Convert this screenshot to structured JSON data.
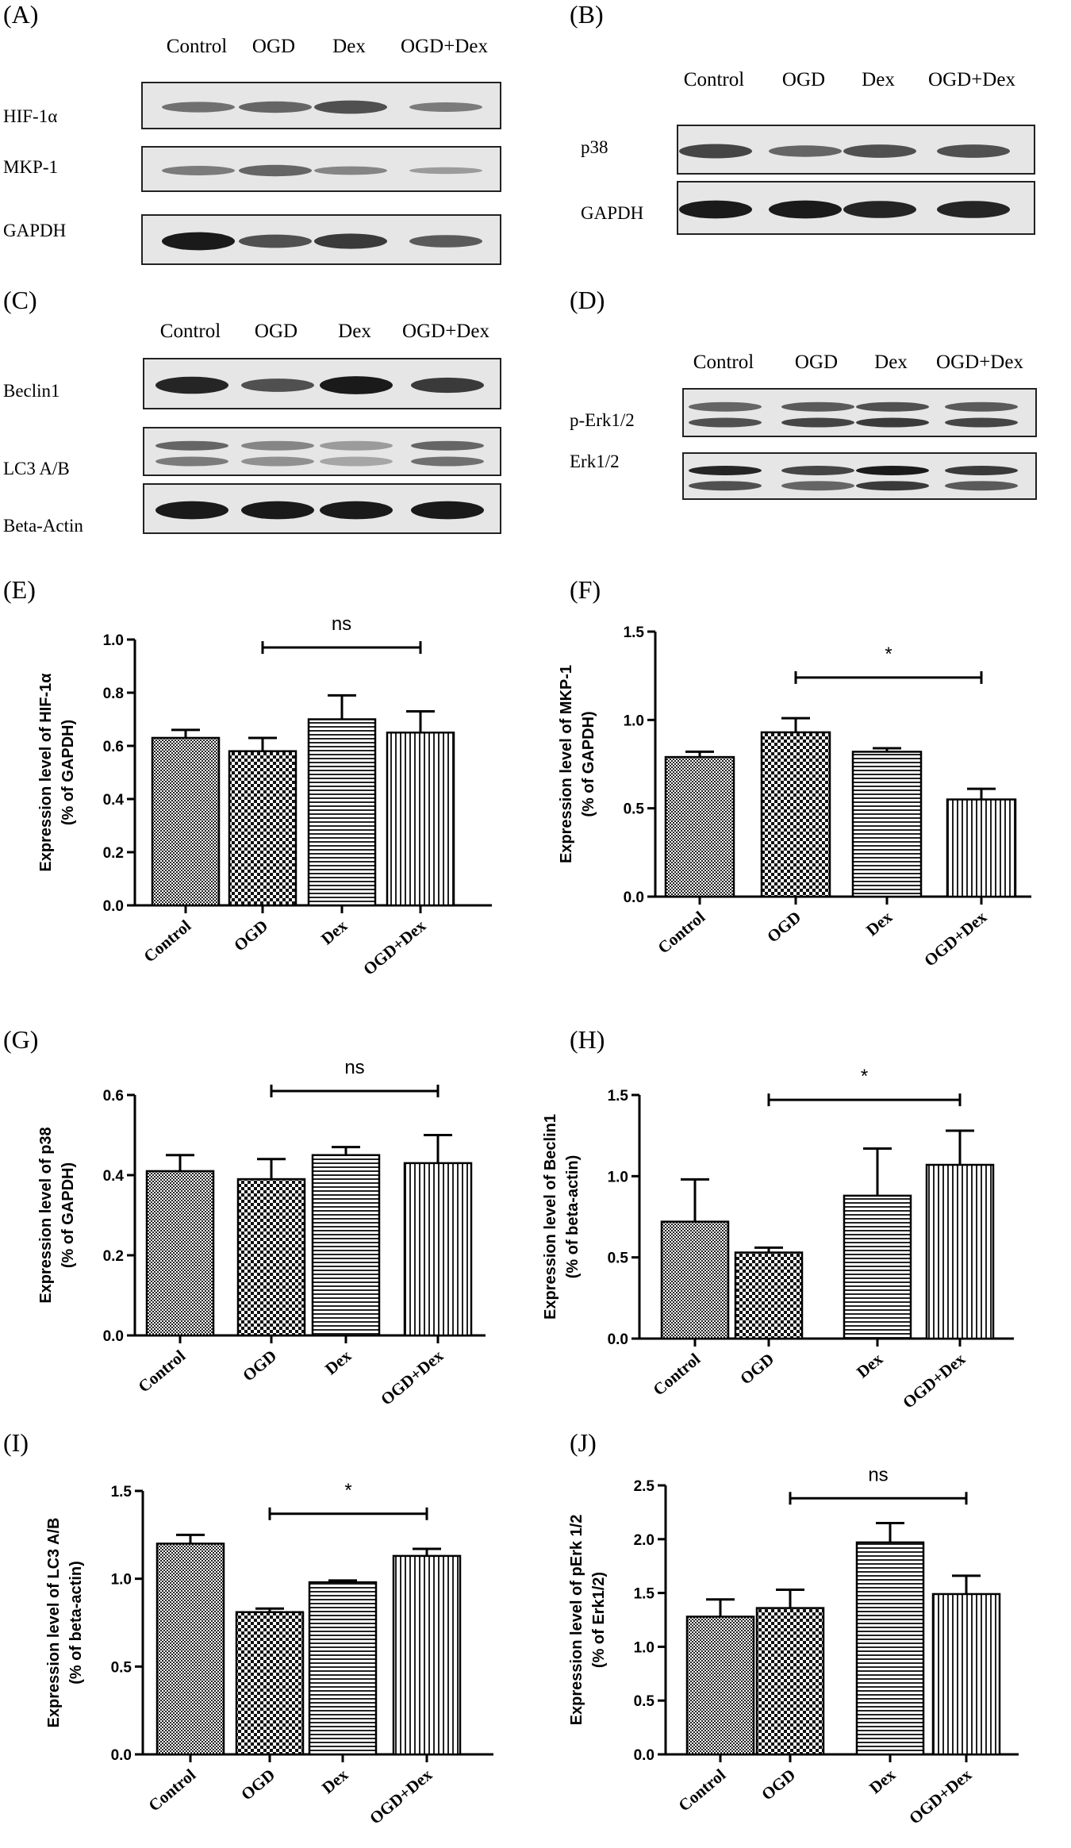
{
  "blots": [
    {
      "id": "A",
      "label": "(A)",
      "lanes": [
        "Control",
        "OGD",
        "Dex",
        "OGD+Dex"
      ],
      "rows": [
        {
          "label": "HIF-1α",
          "bands": [
            [
              0.55
            ],
            [
              0.6
            ],
            [
              0.7
            ],
            [
              0.5
            ]
          ]
        },
        {
          "label": "MKP-1",
          "bands": [
            [
              0.5
            ],
            [
              0.6
            ],
            [
              0.45
            ],
            [
              0.35
            ]
          ]
        },
        {
          "label": "GAPDH",
          "bands": [
            [
              0.95
            ],
            [
              0.7
            ],
            [
              0.8
            ],
            [
              0.65
            ]
          ]
        }
      ]
    },
    {
      "id": "B",
      "label": "(B)",
      "lanes": [
        "Control",
        "OGD",
        "Dex",
        "OGD+Dex"
      ],
      "rows": [
        {
          "label": "p38",
          "bands": [
            [
              0.75
            ],
            [
              0.6
            ],
            [
              0.7
            ],
            [
              0.7
            ]
          ]
        },
        {
          "label": "GAPDH",
          "bands": [
            [
              0.95
            ],
            [
              0.95
            ],
            [
              0.9
            ],
            [
              0.9
            ]
          ]
        }
      ]
    },
    {
      "id": "C",
      "label": "(C)",
      "lanes": [
        "Control",
        "OGD",
        "Dex",
        "OGD+Dex"
      ],
      "rows": [
        {
          "label": "Beclin1",
          "bands": [
            [
              0.9
            ],
            [
              0.7
            ],
            [
              0.95
            ],
            [
              0.8
            ]
          ]
        },
        {
          "label": "LC3 A/B",
          "bands": [
            [
              0.6,
              0.5
            ],
            [
              0.45,
              0.4
            ],
            [
              0.35,
              0.3
            ],
            [
              0.6,
              0.55
            ]
          ]
        },
        {
          "label": "Beta-Actin",
          "bands": [
            [
              0.95
            ],
            [
              0.95
            ],
            [
              0.95
            ],
            [
              0.95
            ]
          ]
        }
      ]
    },
    {
      "id": "D",
      "label": "(D)",
      "lanes": [
        "Control",
        "OGD",
        "Dex",
        "OGD+Dex"
      ],
      "rows": [
        {
          "label": "p-Erk1/2",
          "bands": [
            [
              0.6,
              0.7
            ],
            [
              0.65,
              0.75
            ],
            [
              0.7,
              0.8
            ],
            [
              0.65,
              0.75
            ]
          ]
        },
        {
          "label": "Erk1/2",
          "bands": [
            [
              0.9,
              0.7
            ],
            [
              0.75,
              0.6
            ],
            [
              0.95,
              0.8
            ],
            [
              0.8,
              0.65
            ]
          ]
        }
      ]
    }
  ],
  "chart_data": [
    {
      "id": "E",
      "panel_label": "(E)",
      "type": "bar",
      "categories": [
        "Control",
        "OGD",
        "Dex",
        "OGD+Dex"
      ],
      "values": [
        0.63,
        0.58,
        0.7,
        0.65
      ],
      "errors": [
        0.03,
        0.05,
        0.09,
        0.08
      ],
      "ylabel_line1": "Expression level of HIF-1α",
      "ylabel_line2": "(% of GAPDH)",
      "ylim": [
        0,
        1.0
      ],
      "yticks": [
        "0.0",
        "0.2",
        "0.4",
        "0.6",
        "0.8",
        "1.0"
      ],
      "ytick_values": [
        0,
        0.2,
        0.4,
        0.6,
        0.8,
        1.0
      ],
      "significance": {
        "text": "ns",
        "from": 1,
        "to": 3,
        "y": 0.97
      }
    },
    {
      "id": "F",
      "panel_label": "(F)",
      "type": "bar",
      "categories": [
        "Control",
        "OGD",
        "Dex",
        "OGD+Dex"
      ],
      "values": [
        0.79,
        0.93,
        0.82,
        0.55
      ],
      "errors": [
        0.03,
        0.08,
        0.02,
        0.06
      ],
      "ylabel_line1": "Expression level of MKP-1",
      "ylabel_line2": "(% of GAPDH)",
      "ylim": [
        0,
        1.5
      ],
      "yticks": [
        "0.0",
        "0.5",
        "1.0",
        "1.5"
      ],
      "ytick_values": [
        0,
        0.5,
        1.0,
        1.5
      ],
      "significance": {
        "text": "*",
        "from": 1,
        "to": 3,
        "y": 1.24
      }
    },
    {
      "id": "G",
      "panel_label": "(G)",
      "type": "bar",
      "categories": [
        "Control",
        "OGD",
        "Dex",
        "OGD+Dex"
      ],
      "values": [
        0.41,
        0.39,
        0.45,
        0.43
      ],
      "errors": [
        0.04,
        0.05,
        0.02,
        0.07
      ],
      "ylabel_line1": "Expression level of p38",
      "ylabel_line2": "(% of GAPDH)",
      "ylim": [
        0,
        0.6
      ],
      "yticks": [
        "0.0",
        "0.2",
        "0.4",
        "0.6"
      ],
      "ytick_values": [
        0,
        0.2,
        0.4,
        0.6
      ],
      "significance": {
        "text": "ns",
        "from": 1,
        "to": 3,
        "y": 0.61
      }
    },
    {
      "id": "H",
      "panel_label": "(H)",
      "type": "bar",
      "categories": [
        "Control",
        "OGD",
        "Dex",
        "OGD+Dex"
      ],
      "values": [
        0.72,
        0.53,
        0.88,
        1.07
      ],
      "errors": [
        0.26,
        0.03,
        0.29,
        0.21
      ],
      "ylabel_line1": "Expression level of Beclin1",
      "ylabel_line2": "(% of beta-actin)",
      "ylim": [
        0,
        1.5
      ],
      "yticks": [
        "0.0",
        "0.5",
        "1.0",
        "1.5"
      ],
      "ytick_values": [
        0,
        0.5,
        1.0,
        1.5
      ],
      "significance": {
        "text": "*",
        "from": 1,
        "to": 3,
        "y": 1.47
      }
    },
    {
      "id": "I",
      "panel_label": "(I)",
      "type": "bar",
      "categories": [
        "Control",
        "OGD",
        "Dex",
        "OGD+Dex"
      ],
      "values": [
        1.2,
        0.81,
        0.98,
        1.13
      ],
      "errors": [
        0.05,
        0.02,
        0.01,
        0.04
      ],
      "ylabel_line1": "Expression level of LC3 A/B",
      "ylabel_line2": "(% of beta-actin)",
      "ylim": [
        0,
        1.5
      ],
      "yticks": [
        "0.0",
        "0.5",
        "1.0",
        "1.5"
      ],
      "ytick_values": [
        0,
        0.5,
        1.0,
        1.5
      ],
      "significance": {
        "text": "*",
        "from": 1,
        "to": 3,
        "y": 1.37
      }
    },
    {
      "id": "J",
      "panel_label": "(J)",
      "type": "bar",
      "categories": [
        "Control",
        "OGD",
        "Dex",
        "OGD+Dex"
      ],
      "values": [
        1.28,
        1.36,
        1.97,
        1.49
      ],
      "errors": [
        0.16,
        0.17,
        0.18,
        0.17
      ],
      "ylabel_line1": "Expression level of pErk 1/2",
      "ylabel_line2": "(% of Erk1/2)",
      "ylim": [
        0,
        2.5
      ],
      "yticks": [
        "0.0",
        "0.5",
        "1.0",
        "1.5",
        "2.0",
        "2.5"
      ],
      "ytick_values": [
        0,
        0.5,
        1.0,
        1.5,
        2.0,
        2.5
      ],
      "significance": {
        "text": "ns",
        "from": 1,
        "to": 3,
        "y": 2.38
      }
    }
  ]
}
